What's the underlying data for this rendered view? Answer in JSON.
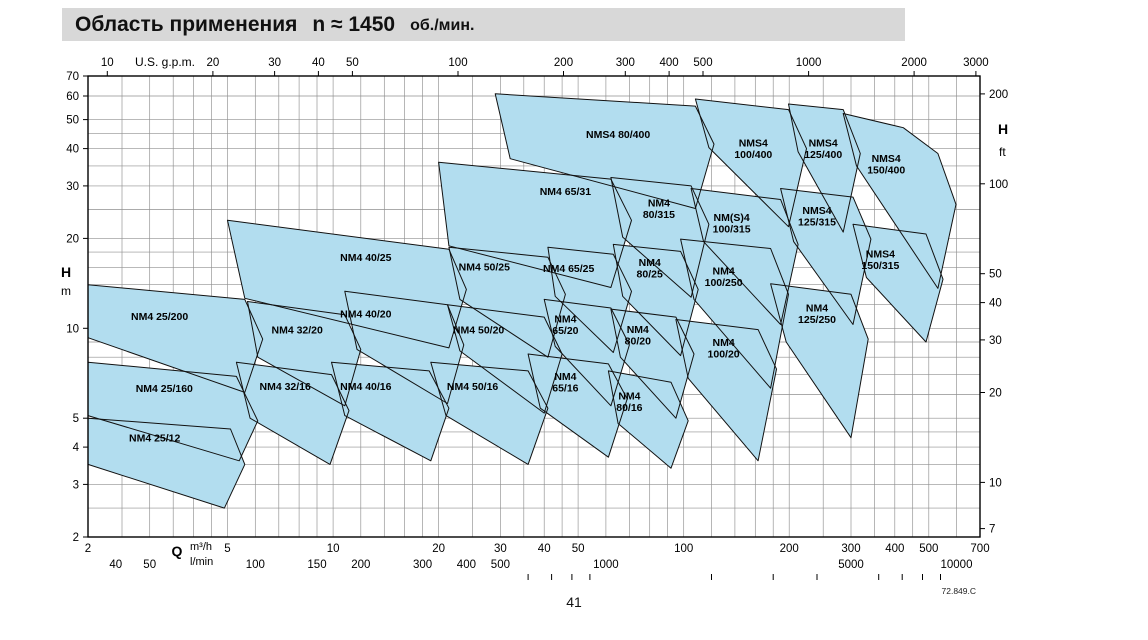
{
  "header": {
    "title_main": "Область применения",
    "title_speed": "n ≈ 1450",
    "title_unit": "об./мин."
  },
  "footer": {
    "page_number": "41",
    "drawing_ref": "72.849.C"
  },
  "chart_data": {
    "type": "area",
    "title": "Область применения n ≈ 1450 об./мин.",
    "x_axis": {
      "scale": "log",
      "q_label": "Q",
      "unit_m3h": "m³/h",
      "unit_lmin": "l/min",
      "top_label": "U.S. g.p.m.",
      "range_m3h": [
        2,
        700
      ],
      "ticks_m3h": [
        2,
        5,
        10,
        20,
        30,
        40,
        50,
        100,
        200,
        300,
        400,
        500,
        700
      ],
      "ticks_lmin": [
        40,
        50,
        100,
        150,
        200,
        300,
        400,
        500,
        1000,
        5000,
        10000
      ],
      "minor_ticks_lmin": [
        600,
        700,
        800,
        900,
        2000,
        3000,
        4000,
        6000,
        7000,
        8000,
        9000
      ],
      "ticks_usgpm": [
        10,
        20,
        30,
        40,
        50,
        100,
        200,
        300,
        400,
        500,
        1000,
        2000,
        3000
      ],
      "m3h_per_usgpm": 0.2271,
      "m3h_per_lmin": 0.06
    },
    "y_axis": {
      "scale": "log",
      "left_label": "H",
      "left_unit": "m",
      "right_label": "H",
      "right_unit": "ft",
      "range_m": [
        2,
        70
      ],
      "ticks_m": [
        70,
        60,
        50,
        40,
        30,
        20,
        10,
        5,
        4,
        3,
        2
      ],
      "ticks_ft": [
        200,
        100,
        50,
        40,
        30,
        20,
        10,
        7
      ],
      "m_per_ft": 0.3048
    },
    "grid": {
      "on": true,
      "mantissas": [
        1,
        1.2,
        1.4,
        1.6,
        1.8,
        2,
        2.5,
        3,
        3.5,
        4,
        4.5,
        5,
        6,
        7,
        8,
        9
      ]
    },
    "style": {
      "region_fill": "#b2ddef",
      "region_stroke": "#111111",
      "grid_color": "#8f8f8f",
      "axis_color": "#000000",
      "header_bg": "#d8d8d8"
    },
    "regions": [
      {
        "name": "NM4 25/12",
        "lines": [
          "NM4 25/12"
        ],
        "label_at": [
          3.1,
          4.3
        ],
        "points": [
          [
            2,
            5.0
          ],
          [
            5.1,
            4.6
          ],
          [
            5.6,
            3.5
          ],
          [
            4.9,
            2.5
          ],
          [
            2,
            3.5
          ]
        ]
      },
      {
        "name": "NM4 25/160",
        "lines": [
          "NM4 25/160"
        ],
        "label_at": [
          3.3,
          6.3
        ],
        "points": [
          [
            2,
            7.7
          ],
          [
            5.3,
            6.9
          ],
          [
            6.1,
            4.9
          ],
          [
            5.4,
            3.6
          ],
          [
            2,
            5.1
          ]
        ]
      },
      {
        "name": "NM4 25/200",
        "lines": [
          "NM4 25/200"
        ],
        "label_at": [
          3.2,
          11.0
        ],
        "points": [
          [
            2,
            14
          ],
          [
            5.6,
            12.5
          ],
          [
            6.3,
            9.2
          ],
          [
            5.6,
            6.1
          ],
          [
            2,
            9.3
          ]
        ]
      },
      {
        "name": "NM4 32/16",
        "lines": [
          "NM4 32/16"
        ],
        "label_at": [
          7.3,
          6.4
        ],
        "points": [
          [
            5.3,
            7.7
          ],
          [
            9.9,
            7.0
          ],
          [
            11.1,
            5.3
          ],
          [
            9.8,
            3.5
          ],
          [
            5.8,
            5.0
          ]
        ]
      },
      {
        "name": "NM4 32/20",
        "lines": [
          "NM4 32/20"
        ],
        "label_at": [
          7.9,
          9.9
        ],
        "points": [
          [
            5.7,
            12.3
          ],
          [
            10.8,
            11.1
          ],
          [
            12.0,
            8.5
          ],
          [
            10.8,
            5.5
          ],
          [
            6.1,
            8.0
          ]
        ]
      },
      {
        "name": "NM4 40/16",
        "lines": [
          "NM4 40/16"
        ],
        "label_at": [
          12.4,
          6.4
        ],
        "points": [
          [
            9.9,
            7.7
          ],
          [
            18.8,
            7.2
          ],
          [
            21.4,
            5.4
          ],
          [
            19,
            3.6
          ],
          [
            10.8,
            5.1
          ]
        ]
      },
      {
        "name": "NM4 40/20",
        "lines": [
          "NM4 40/20"
        ],
        "label_at": [
          12.4,
          11.2
        ],
        "points": [
          [
            10.8,
            13.3
          ],
          [
            21.2,
            12.0
          ],
          [
            23.6,
            8.8
          ],
          [
            21.2,
            5.6
          ],
          [
            11.7,
            8.5
          ]
        ]
      },
      {
        "name": "NM4 40/25",
        "lines": [
          "NM4 40/25"
        ],
        "label_at": [
          12.4,
          17.3
        ],
        "points": [
          [
            5,
            23
          ],
          [
            21.4,
            18.4
          ],
          [
            24,
            13.5
          ],
          [
            21.4,
            8.6
          ],
          [
            5.6,
            12.6
          ]
        ]
      },
      {
        "name": "NM4 50/16",
        "lines": [
          "NM4 50/16"
        ],
        "label_at": [
          25,
          6.4
        ],
        "points": [
          [
            19,
            7.7
          ],
          [
            36,
            7.2
          ],
          [
            41,
            5.4
          ],
          [
            36,
            3.5
          ],
          [
            21,
            5.1
          ]
        ]
      },
      {
        "name": "NM4 50/20",
        "lines": [
          "NM4 50/20"
        ],
        "label_at": [
          26,
          9.9
        ],
        "points": [
          [
            21.2,
            12
          ],
          [
            40,
            10.9
          ],
          [
            45,
            8.2
          ],
          [
            40,
            5.2
          ],
          [
            23,
            8.4
          ]
        ]
      },
      {
        "name": "NM4 50/25",
        "lines": [
          "NM4 50/25"
        ],
        "label_at": [
          27,
          16.1
        ],
        "points": [
          [
            21.4,
            18.7
          ],
          [
            41,
            17.3
          ],
          [
            46,
            13
          ],
          [
            41,
            8.0
          ],
          [
            23,
            12.5
          ]
        ]
      },
      {
        "name": "NM4 65/16",
        "lines": [
          "NM4",
          "65/16"
        ],
        "label_at": [
          46,
          6.6
        ],
        "points": [
          [
            36,
            8.2
          ],
          [
            61,
            7.6
          ],
          [
            69,
            5.8
          ],
          [
            61,
            3.7
          ],
          [
            39,
            5.4
          ]
        ]
      },
      {
        "name": "NM4 65/20",
        "lines": [
          "NM4",
          "65/20"
        ],
        "label_at": [
          46,
          10.3
        ],
        "points": [
          [
            40,
            12.5
          ],
          [
            62,
            11.7
          ],
          [
            70,
            8.8
          ],
          [
            62,
            5.5
          ],
          [
            43,
            8.7
          ]
        ]
      },
      {
        "name": "NM4 65/25",
        "lines": [
          "NM4 65/25"
        ],
        "label_at": [
          47,
          15.9
        ],
        "points": [
          [
            41,
            18.7
          ],
          [
            63,
            17.7
          ],
          [
            71,
            13.3
          ],
          [
            63,
            8.3
          ],
          [
            43,
            12.8
          ]
        ]
      },
      {
        "name": "NM4 65/31",
        "lines": [
          "NM4 65/31"
        ],
        "label_at": [
          46,
          28.8
        ],
        "points": [
          [
            20,
            36
          ],
          [
            62,
            31.6
          ],
          [
            71,
            23
          ],
          [
            62,
            13.7
          ],
          [
            21.4,
            18.9
          ]
        ]
      },
      {
        "name": "NM4 80/16",
        "lines": [
          "NM4",
          "80/16"
        ],
        "label_at": [
          70,
          5.7
        ],
        "points": [
          [
            61,
            7.2
          ],
          [
            92,
            6.6
          ],
          [
            103,
            4.9
          ],
          [
            92,
            3.4
          ],
          [
            65,
            4.8
          ]
        ]
      },
      {
        "name": "NM4 80/20",
        "lines": [
          "NM4",
          "80/20"
        ],
        "label_at": [
          74,
          9.5
        ],
        "points": [
          [
            62,
            11.6
          ],
          [
            95,
            10.9
          ],
          [
            107,
            8.2
          ],
          [
            95,
            5.0
          ],
          [
            66,
            8.0
          ]
        ]
      },
      {
        "name": "NM4 80/25",
        "lines": [
          "NM4",
          "80/25"
        ],
        "label_at": [
          80,
          15.9
        ],
        "points": [
          [
            63,
            19.1
          ],
          [
            98,
            18.1
          ],
          [
            110,
            13.5
          ],
          [
            98,
            8.1
          ],
          [
            67,
            12.8
          ]
        ]
      },
      {
        "name": "NM4 80/315",
        "lines": [
          "NM4",
          "80/315"
        ],
        "label_at": [
          85,
          25.2
        ],
        "points": [
          [
            62,
            32
          ],
          [
            105,
            30
          ],
          [
            118,
            22.3
          ],
          [
            105,
            12.7
          ],
          [
            67,
            20.2
          ]
        ]
      },
      {
        "name": "NM4 100/20",
        "lines": [
          "NM4",
          "100/20"
        ],
        "label_at": [
          130,
          8.6
        ],
        "points": [
          [
            95,
            10.7
          ],
          [
            163,
            9.9
          ],
          [
            184,
            7.3
          ],
          [
            163,
            3.6
          ],
          [
            103,
            6.8
          ]
        ]
      },
      {
        "name": "NM4 100/250",
        "lines": [
          "NM4",
          "100/250"
        ],
        "label_at": [
          130,
          14.9
        ],
        "points": [
          [
            98,
            19.9
          ],
          [
            177,
            18.5
          ],
          [
            199,
            13
          ],
          [
            177,
            6.3
          ],
          [
            107,
            12.5
          ]
        ]
      },
      {
        "name": "NM(S)4 100/315",
        "lines": [
          "NM(S)4",
          "100/315"
        ],
        "label_at": [
          137,
          22.5
        ],
        "points": [
          [
            105,
            29.4
          ],
          [
            189,
            27
          ],
          [
            212,
            19.1
          ],
          [
            189,
            10.3
          ],
          [
            114,
            19.5
          ]
        ]
      },
      {
        "name": "NM4 125/250",
        "lines": [
          "NM4",
          "125/250"
        ],
        "label_at": [
          240,
          11.2
        ],
        "points": [
          [
            177,
            14.1
          ],
          [
            300,
            13
          ],
          [
            336,
            9.2
          ],
          [
            300,
            4.3
          ],
          [
            196,
            9.0
          ]
        ]
      },
      {
        "name": "NMS4 125/315",
        "lines": [
          "NMS4",
          "125/315"
        ],
        "label_at": [
          240,
          23.8
        ],
        "points": [
          [
            189,
            29.4
          ],
          [
            304,
            27.5
          ],
          [
            342,
            19.9
          ],
          [
            304,
            10.3
          ],
          [
            206,
            19.5
          ]
        ]
      },
      {
        "name": "NMS4 150/315",
        "lines": [
          "NMS4",
          "150/315"
        ],
        "label_at": [
          364,
          17.0
        ],
        "points": [
          [
            304,
            22.3
          ],
          [
            491,
            20.7
          ],
          [
            549,
            14.6
          ],
          [
            491,
            9.0
          ],
          [
            332,
            14.8
          ]
        ]
      },
      {
        "name": "NMS4 80/400",
        "lines": [
          "NMS4 80/400"
        ],
        "label_at": [
          65,
          44.6
        ],
        "points": [
          [
            29,
            61
          ],
          [
            108,
            55.5
          ],
          [
            122,
            41.4
          ],
          [
            108,
            25.2
          ],
          [
            32,
            37
          ]
        ]
      },
      {
        "name": "NMS4 100/400",
        "lines": [
          "NMS4",
          "100/400"
        ],
        "label_at": [
          158,
          40.0
        ],
        "points": [
          [
            108,
            58.6
          ],
          [
            199,
            54
          ],
          [
            224,
            40
          ],
          [
            199,
            21.9
          ],
          [
            118,
            40.3
          ]
        ]
      },
      {
        "name": "NMS4 125/400",
        "lines": [
          "NMS4",
          "125/400"
        ],
        "label_at": [
          250,
          40.0
        ],
        "points": [
          [
            199,
            56.4
          ],
          [
            285,
            54
          ],
          [
            319,
            38.5
          ],
          [
            285,
            21
          ],
          [
            212,
            39
          ]
        ]
      },
      {
        "name": "NMS4 150/400",
        "lines": [
          "NMS4",
          "150/400"
        ],
        "label_at": [
          378,
          35.5
        ],
        "points": [
          [
            285,
            52.4
          ],
          [
            423,
            47
          ],
          [
            531,
            38.5
          ],
          [
            598,
            26
          ],
          [
            531,
            13.6
          ],
          [
            311,
            35
          ]
        ]
      }
    ]
  }
}
